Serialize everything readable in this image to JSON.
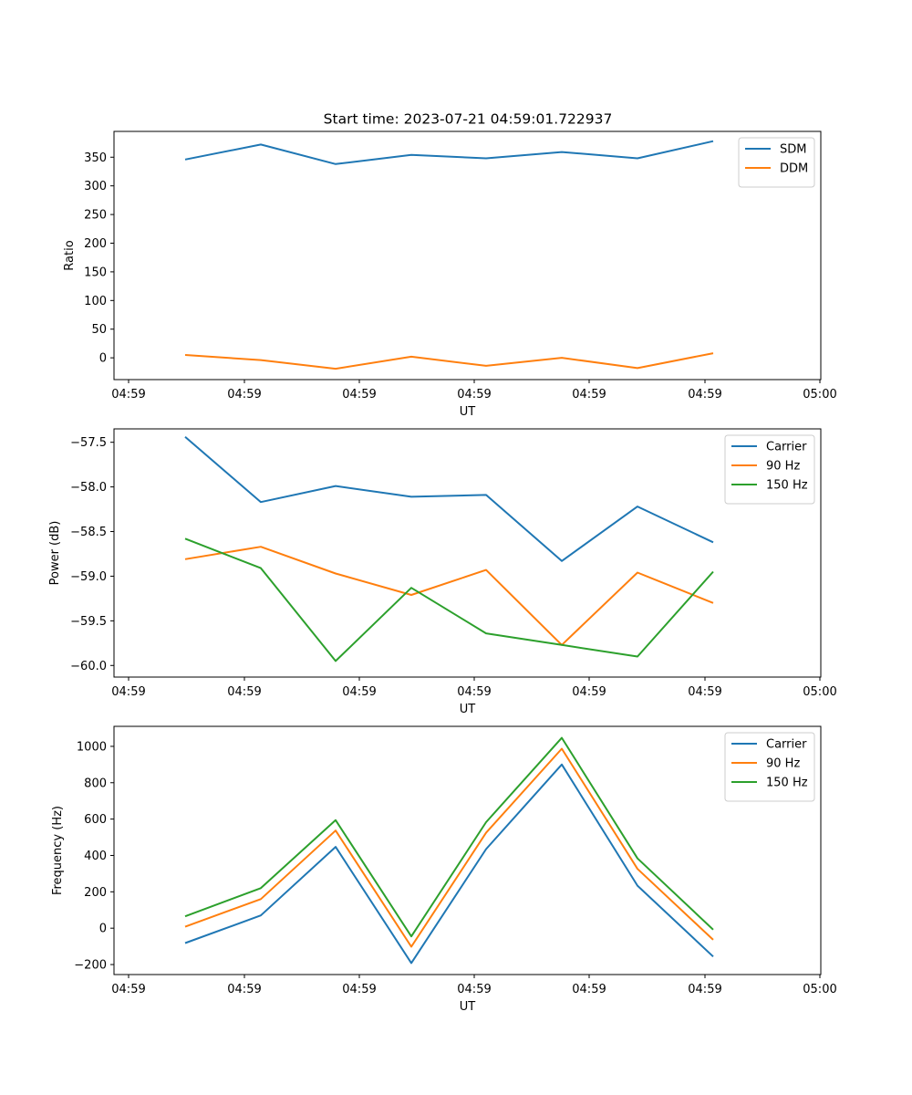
{
  "title": "Start time: 2023-07-21 04:59:01.722937",
  "chart_data": [
    {
      "type": "line",
      "xlabel": "UT",
      "ylabel": "Ratio",
      "x_tick_labels": [
        "04:59",
        "04:59",
        "04:59",
        "04:59",
        "04:59",
        "04:59",
        "04:59",
        "05:00"
      ],
      "ylim": [
        -38,
        395
      ],
      "yticks": [
        0,
        50,
        100,
        150,
        200,
        250,
        300,
        350
      ],
      "ytick_labels": [
        "0",
        "50",
        "100",
        "150",
        "200",
        "250",
        "300",
        "350"
      ],
      "legend_position": "top-right",
      "series": [
        {
          "name": "SDM",
          "color": "#1f77b4",
          "values": [
            346,
            372,
            338,
            354,
            348,
            359,
            348,
            378
          ]
        },
        {
          "name": "DDM",
          "color": "#ff7f0e",
          "values": [
            5,
            -4,
            -19,
            2,
            -14,
            0,
            -18,
            8
          ]
        }
      ]
    },
    {
      "type": "line",
      "xlabel": "UT",
      "ylabel": "Power (dB)",
      "x_tick_labels": [
        "04:59",
        "04:59",
        "04:59",
        "04:59",
        "04:59",
        "04:59",
        "04:59",
        "05:00"
      ],
      "ylim": [
        -60.13,
        -57.35
      ],
      "yticks": [
        -60.0,
        -59.5,
        -59.0,
        -58.5,
        -58.0,
        -57.5
      ],
      "ytick_labels": [
        "−60.0",
        "−59.5",
        "−59.0",
        "−58.5",
        "−58.0",
        "−57.5"
      ],
      "legend_position": "top-right",
      "series": [
        {
          "name": "Carrier",
          "color": "#1f77b4",
          "values": [
            -57.44,
            -58.17,
            -57.99,
            -58.11,
            -58.09,
            -58.83,
            -58.22,
            -58.62
          ]
        },
        {
          "name": "90 Hz",
          "color": "#ff7f0e",
          "values": [
            -58.81,
            -58.67,
            -58.97,
            -59.21,
            -58.93,
            -59.77,
            -58.96,
            -59.3
          ]
        },
        {
          "name": "150 Hz",
          "color": "#2ca02c",
          "values": [
            -58.58,
            -58.91,
            -59.95,
            -59.13,
            -59.64,
            -59.77,
            -59.9,
            -58.95
          ]
        }
      ]
    },
    {
      "type": "line",
      "xlabel": "UT",
      "ylabel": "Frequency (Hz)",
      "x_tick_labels": [
        "04:59",
        "04:59",
        "04:59",
        "04:59",
        "04:59",
        "04:59",
        "04:59",
        "05:00"
      ],
      "ylim": [
        -255,
        1110
      ],
      "yticks": [
        -200,
        0,
        200,
        400,
        600,
        800,
        1000
      ],
      "ytick_labels": [
        "−200",
        "0",
        "200",
        "400",
        "600",
        "800",
        "1000"
      ],
      "legend_position": "top-right",
      "series": [
        {
          "name": "Carrier",
          "color": "#1f77b4",
          "values": [
            -82,
            70,
            447,
            -192,
            435,
            900,
            234,
            -156
          ]
        },
        {
          "name": "90 Hz",
          "color": "#ff7f0e",
          "values": [
            8,
            160,
            537,
            -102,
            525,
            987,
            326,
            -64
          ]
        },
        {
          "name": "150 Hz",
          "color": "#2ca02c",
          "values": [
            65,
            220,
            594,
            -45,
            583,
            1047,
            384,
            -8
          ]
        }
      ]
    }
  ]
}
